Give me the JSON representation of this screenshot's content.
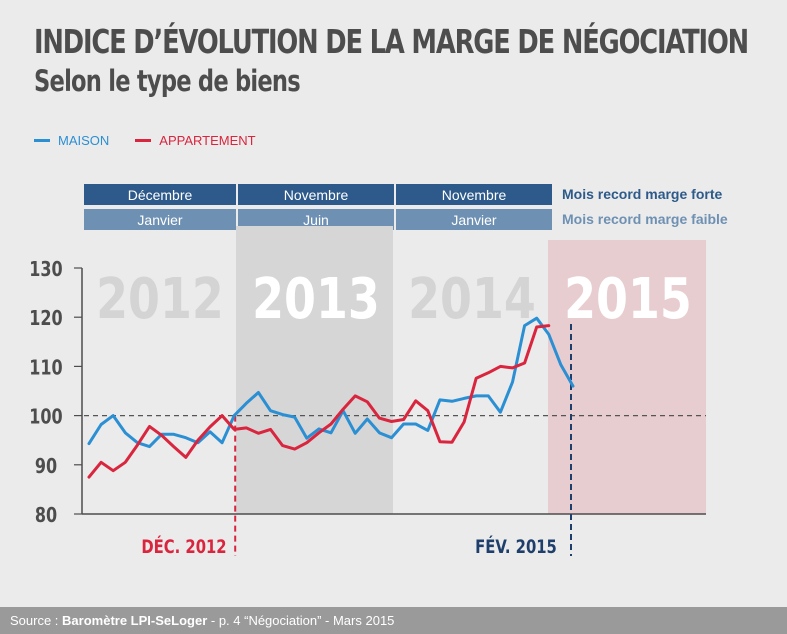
{
  "title": "INDICE D’ÉVOLUTION DE LA MARGE DE NÉGOCIATION",
  "subtitle": "Selon le type de biens",
  "legend": [
    {
      "label": "MAISON",
      "color": "#2b8fd4"
    },
    {
      "label": "APPARTEMENT",
      "color": "#d9253e"
    }
  ],
  "record_rows": {
    "forte": {
      "label": "Mois record marge forte",
      "cells": [
        "Décembre",
        "Novembre",
        "Novembre"
      ],
      "color": "#2d5a8a"
    },
    "faible": {
      "label": "Mois record marge faible",
      "cells": [
        "Janvier",
        "Juin",
        "Janvier"
      ],
      "color": "#6e90b3"
    }
  },
  "footer": {
    "prefix": "Source :",
    "source": "Baromètre LPI-SeLoger",
    "rest": "- p. 4 “Négociation” - Mars 2015"
  },
  "chart_data": {
    "type": "line",
    "title": "INDICE D’ÉVOLUTION DE LA MARGE DE NÉGOCIATION",
    "subtitle": "Selon le type de biens",
    "ylim": [
      80,
      130
    ],
    "yticks": [
      80,
      90,
      100,
      110,
      120,
      130
    ],
    "reference_line": 100,
    "year_labels": [
      "2012",
      "2013",
      "2014",
      "2015"
    ],
    "annotations": [
      {
        "label": "DÉC. 2012",
        "color": "#d9253e"
      },
      {
        "label": "FÉV. 2015",
        "color": "#1e3f6b"
      }
    ],
    "series": [
      {
        "name": "MAISON",
        "color": "#2b8fd4",
        "values": [
          94.3,
          98.2,
          100,
          96.5,
          94.5,
          93.7,
          96.2,
          96.2,
          95.5,
          94.5,
          96.7,
          94.5,
          100,
          102.5,
          104.7,
          101,
          100.2,
          99.7,
          95.4,
          97.3,
          96.5,
          101,
          96.4,
          99.3,
          96.5,
          95.5,
          98.3,
          98.3,
          97,
          103.2,
          102.9,
          103.5,
          104,
          104,
          100.7,
          106.8,
          118.3,
          119.8,
          116.5,
          110.3,
          106
        ]
      },
      {
        "name": "APPARTEMENT",
        "color": "#d9253e",
        "values": [
          87.5,
          90.5,
          88.8,
          90.5,
          94,
          97.8,
          96,
          93.7,
          91.5,
          95,
          97.7,
          100,
          97.2,
          97.5,
          96.4,
          97.2,
          93.9,
          93.2,
          94.5,
          96.5,
          98.3,
          101.3,
          104,
          102.8,
          99.5,
          98.8,
          99.2,
          103,
          101,
          94.7,
          94.6,
          98.7,
          107.6,
          108.7,
          110,
          109.7,
          110.7,
          118,
          118.3
        ]
      }
    ]
  }
}
